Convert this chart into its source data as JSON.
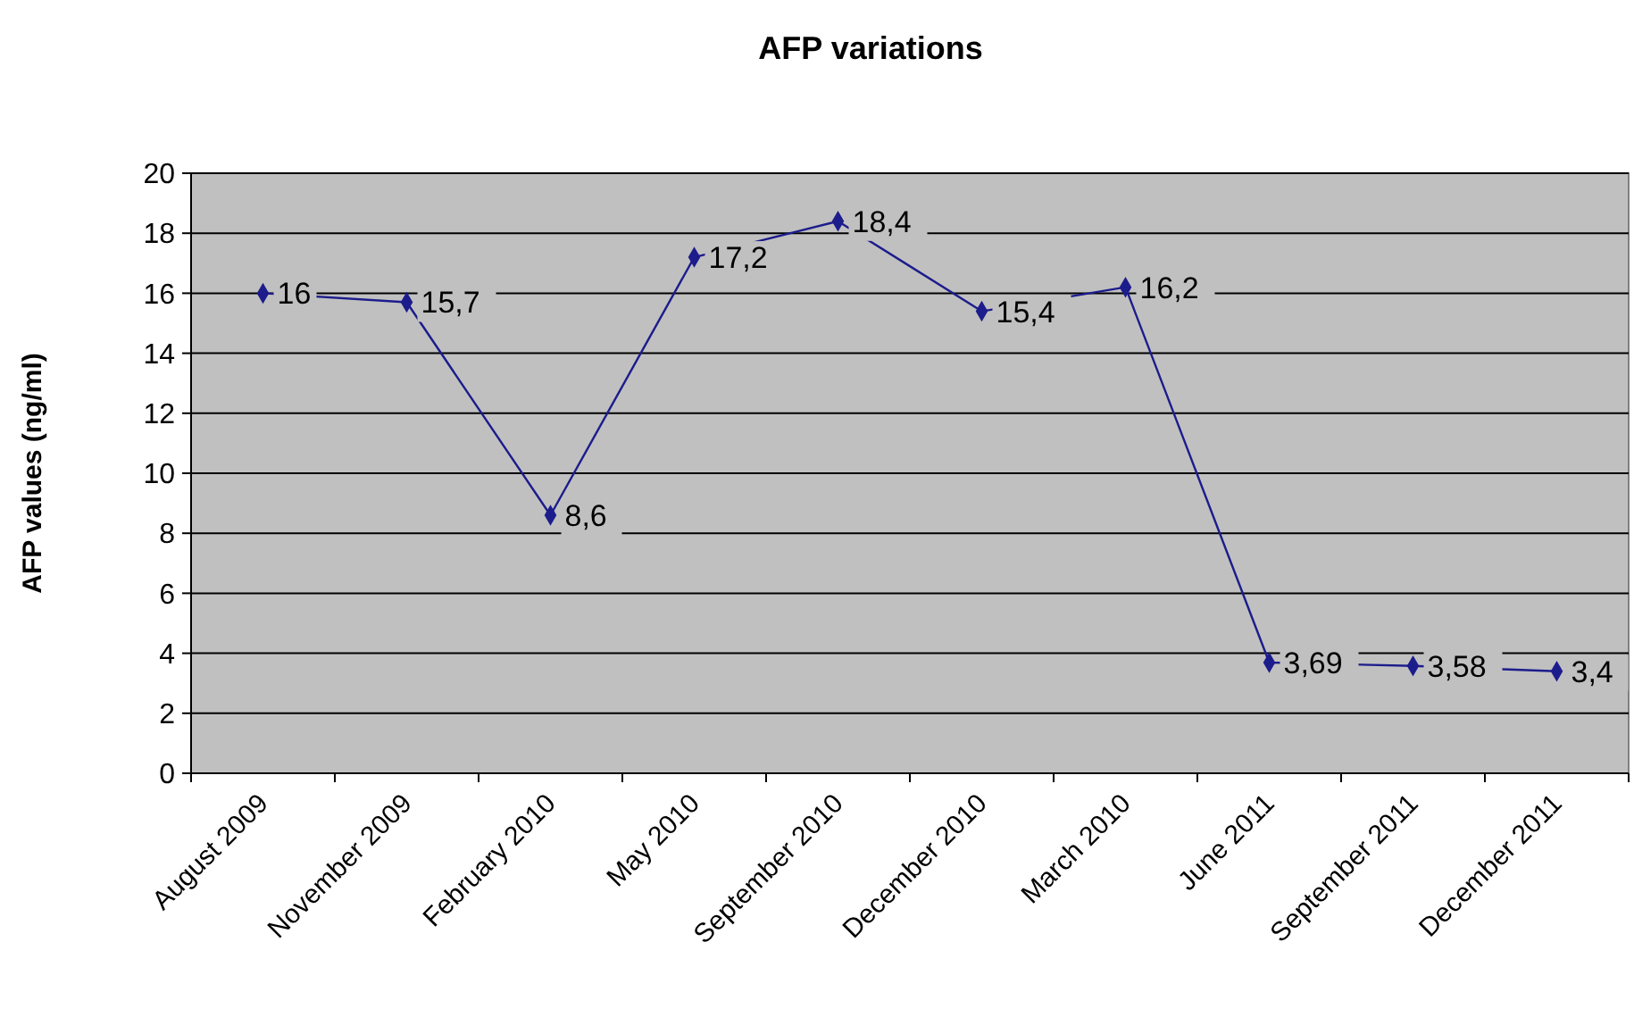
{
  "chart_data": {
    "type": "line",
    "title": "AFP variations",
    "ylabel": "AFP values (ng/ml)",
    "categories": [
      "August 2009",
      "November 2009",
      "February 2010",
      "May 2010",
      "September 2010",
      "December 2010",
      "March 2010",
      "June 2011",
      "September 2011",
      "December 2011"
    ],
    "series": [
      {
        "color": "#1c1c8c",
        "values": [
          16,
          15.7,
          8.6,
          17.2,
          18.4,
          15.4,
          16.2,
          3.69,
          3.58,
          3.4
        ],
        "value_labels": [
          "16",
          "15,7",
          "8,6",
          "17,2",
          "18,4",
          "15,4",
          "16,2",
          "3,69",
          "3,58",
          "3,4"
        ]
      }
    ],
    "ylim": [
      0,
      20
    ],
    "yticks": [
      0,
      2,
      4,
      6,
      8,
      10,
      12,
      14,
      16,
      18,
      20
    ],
    "grid": "y",
    "marker": "diamond",
    "line_style": "solid"
  }
}
